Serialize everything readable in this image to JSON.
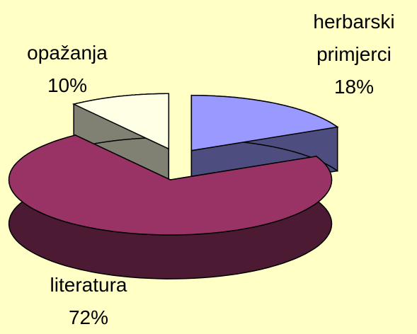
{
  "chart_data": {
    "type": "pie",
    "categories": [
      "herbarski primjerci",
      "literatura",
      "opažanja"
    ],
    "values": [
      18,
      72,
      10
    ],
    "value_labels": [
      "18%",
      "72%",
      "10%"
    ],
    "colors": [
      "#9999ff",
      "#993366",
      "#ffffe6"
    ]
  }
}
